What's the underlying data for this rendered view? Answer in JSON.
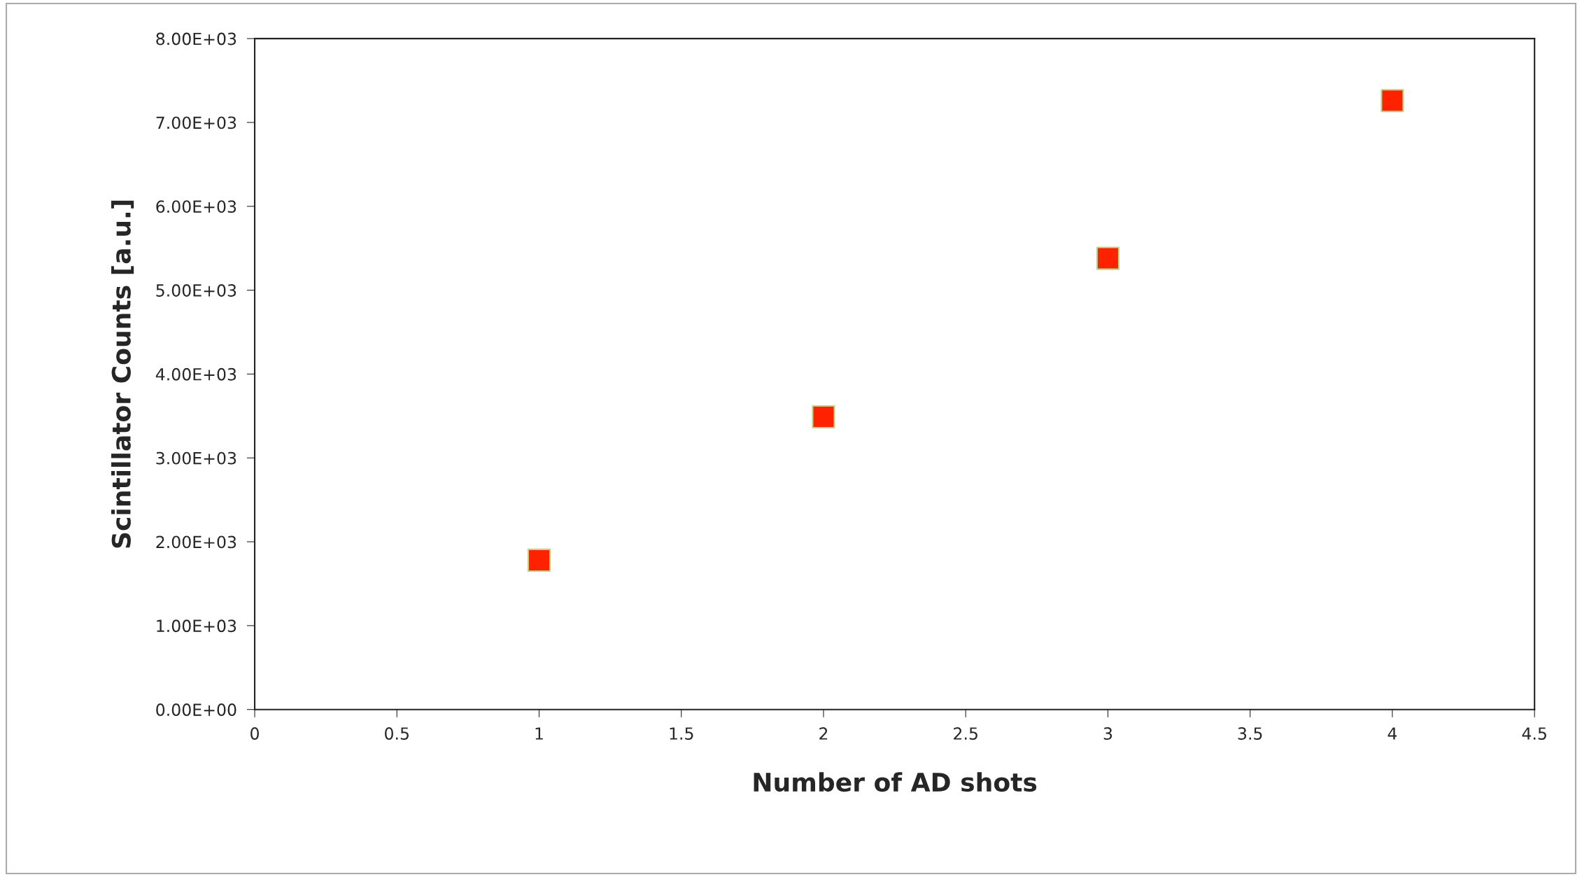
{
  "chart_data": {
    "type": "scatter",
    "xlabel": "Number of AD shots",
    "ylabel": "Scintillator Counts [a.u.]",
    "x": [
      1,
      2,
      3,
      4
    ],
    "series": [
      {
        "color": "#ff2200",
        "values": [
          1780,
          3490,
          5380,
          7260
        ]
      }
    ],
    "marker": "square",
    "xlim": [
      0,
      4.5
    ],
    "xticks": [
      0,
      0.5,
      1,
      1.5,
      2,
      2.5,
      3,
      3.5,
      4,
      4.5
    ],
    "ylim": [
      0,
      8000
    ],
    "yticks": [
      {
        "value": 0,
        "label": "0.00E+00"
      },
      {
        "value": 1000,
        "label": "1.00E+03"
      },
      {
        "value": 2000,
        "label": "2.00E+03"
      },
      {
        "value": 3000,
        "label": "3.00E+03"
      },
      {
        "value": 4000,
        "label": "4.00E+03"
      },
      {
        "value": 5000,
        "label": "5.00E+03"
      },
      {
        "value": 6000,
        "label": "6.00E+03"
      },
      {
        "value": 7000,
        "label": "7.00E+03"
      },
      {
        "value": 8000,
        "label": "8.00E+03"
      }
    ],
    "grid": false,
    "legend": false
  }
}
